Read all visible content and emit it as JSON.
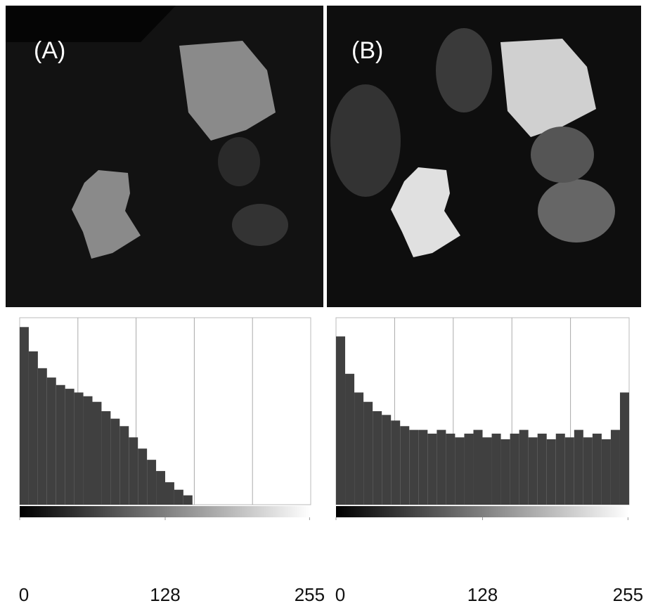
{
  "panels": [
    {
      "label": "(A)"
    },
    {
      "label": "(B)"
    }
  ],
  "chart_data": [
    {
      "type": "histogram",
      "color": "#404040",
      "bins": [
        0,
        8,
        16,
        24,
        32,
        40,
        48,
        56,
        64,
        72,
        80,
        88,
        96,
        104,
        112,
        120,
        128,
        136,
        144,
        152,
        160,
        168,
        176,
        184,
        192,
        200,
        208,
        216,
        224,
        232,
        240,
        248,
        256
      ],
      "values": [
        95,
        82,
        73,
        68,
        64,
        62,
        60,
        58,
        55,
        50,
        46,
        42,
        36,
        30,
        24,
        18,
        12,
        8,
        5,
        0,
        0,
        0,
        0,
        0,
        0,
        0,
        0,
        0,
        0,
        0,
        0,
        0
      ],
      "xlim": [
        0,
        256
      ],
      "ylim": [
        0,
        100
      ],
      "xticks": [
        0,
        128,
        255
      ],
      "grid_x": [
        51.2,
        102.4,
        153.6,
        204.8
      ]
    },
    {
      "type": "histogram",
      "color": "#404040",
      "bins": [
        0,
        8,
        16,
        24,
        32,
        40,
        48,
        56,
        64,
        72,
        80,
        88,
        96,
        104,
        112,
        120,
        128,
        136,
        144,
        152,
        160,
        168,
        176,
        184,
        192,
        200,
        208,
        216,
        224,
        232,
        240,
        248,
        256
      ],
      "values": [
        90,
        70,
        60,
        55,
        50,
        48,
        45,
        42,
        40,
        40,
        38,
        40,
        38,
        36,
        38,
        40,
        36,
        38,
        35,
        38,
        40,
        36,
        38,
        35,
        38,
        36,
        40,
        36,
        38,
        35,
        40,
        60
      ],
      "xlim": [
        0,
        256
      ],
      "ylim": [
        0,
        100
      ],
      "xticks": [
        0,
        128,
        255
      ],
      "grid_x": [
        51.2,
        102.4,
        153.6,
        204.8
      ]
    }
  ]
}
